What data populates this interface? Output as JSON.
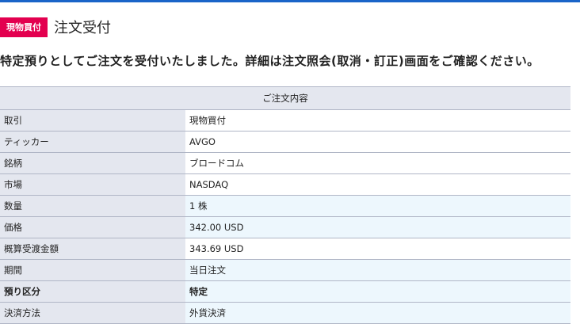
{
  "badge": "現物買付",
  "title": "注文受付",
  "message": "特定預りとしてご注文を受付いたしました。詳細は注文照会(取消・訂正)画面をご確認ください。",
  "table": {
    "header": "ご注文内容",
    "rows": [
      {
        "label": "取引",
        "value": "現物買付"
      },
      {
        "label": "ティッカー",
        "value": "AVGO"
      },
      {
        "label": "銘柄",
        "value": "ブロードコム"
      },
      {
        "label": "市場",
        "value": "NASDAQ"
      },
      {
        "label": "数量",
        "value": "1 株"
      },
      {
        "label": "価格",
        "value": "342.00 USD"
      },
      {
        "label": "概算受渡金額",
        "value": "343.69 USD"
      },
      {
        "label": "期間",
        "value": "当日注文"
      },
      {
        "label": "預り区分",
        "value": "特定"
      },
      {
        "label": "決済方法",
        "value": "外貨決済"
      }
    ]
  },
  "colors": {
    "badge": "#e3004f",
    "topbar": "#1a64c8"
  }
}
